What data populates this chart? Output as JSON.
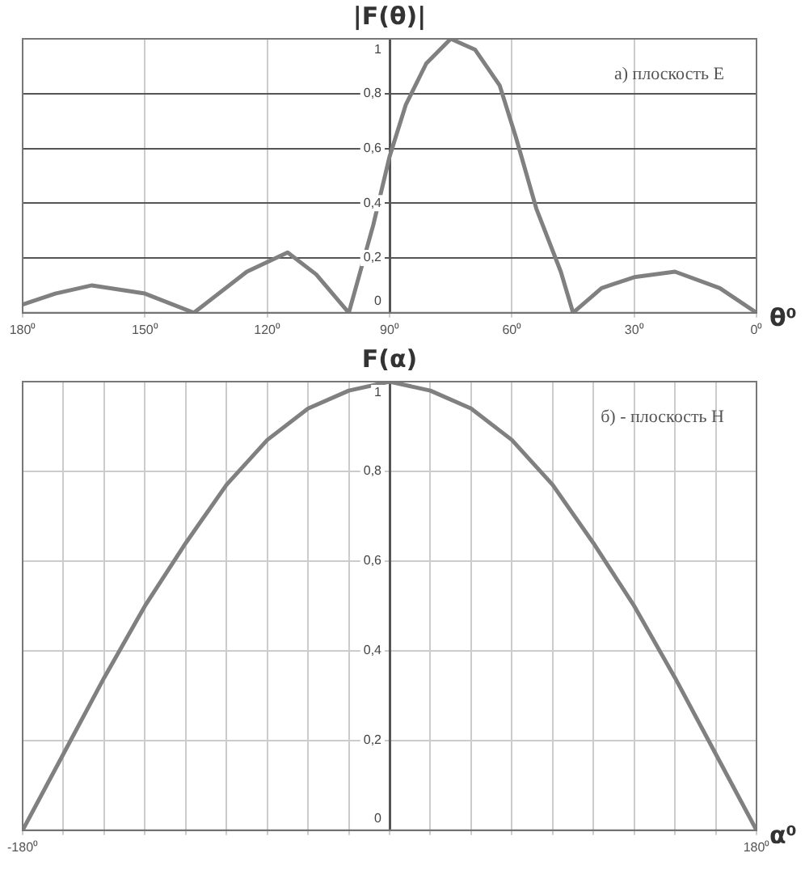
{
  "chart_data": [
    {
      "type": "line",
      "title": "|F(θ)|",
      "xlabel": "θ⁰",
      "annotations": [
        "а) плоскость E"
      ],
      "x": [
        180,
        172,
        163,
        150,
        138,
        125,
        115,
        108,
        100,
        94,
        90,
        86,
        81,
        75,
        69,
        63,
        59,
        54,
        48,
        45,
        38,
        30,
        20,
        9,
        0
      ],
      "values": [
        0.03,
        0.07,
        0.1,
        0.07,
        0,
        0.15,
        0.22,
        0.14,
        0,
        0.32,
        0.57,
        0.76,
        0.91,
        1.0,
        0.96,
        0.83,
        0.64,
        0.38,
        0.15,
        0,
        0.09,
        0.13,
        0.15,
        0.09,
        0
      ],
      "color": "#808080",
      "marker": "none",
      "line_style": "solid",
      "grid": true,
      "xlim": [
        180,
        0
      ],
      "xticks": [
        {
          "value": 180,
          "label": "180⁰"
        },
        {
          "value": 150,
          "label": "150⁰"
        },
        {
          "value": 120,
          "label": "120⁰"
        },
        {
          "value": 90,
          "label": "90⁰"
        },
        {
          "value": 60,
          "label": "60⁰"
        },
        {
          "value": 30,
          "label": "30⁰"
        },
        {
          "value": 0,
          "label": "0⁰"
        }
      ],
      "ylim": [
        0,
        1
      ],
      "yticks": [
        {
          "value": 0,
          "label": "0"
        },
        {
          "value": 0.2,
          "label": "0,2"
        },
        {
          "value": 0.4,
          "label": "0,4"
        },
        {
          "value": 0.6,
          "label": "0,6"
        },
        {
          "value": 0.8,
          "label": "0,8"
        },
        {
          "value": 1,
          "label": "1"
        }
      ]
    },
    {
      "type": "line",
      "title": "F(α)",
      "xlabel": "α⁰",
      "annotations": [
        "б) - плоскость Н"
      ],
      "x": [
        -180,
        -160,
        -140,
        -120,
        -100,
        -80,
        -60,
        -40,
        -20,
        0,
        20,
        40,
        60,
        80,
        100,
        120,
        140,
        160,
        180
      ],
      "values": [
        0,
        0.17,
        0.34,
        0.5,
        0.64,
        0.77,
        0.87,
        0.94,
        0.98,
        1.0,
        0.98,
        0.94,
        0.87,
        0.77,
        0.64,
        0.5,
        0.34,
        0.17,
        0
      ],
      "color": "#808080",
      "marker": "none",
      "line_style": "solid",
      "grid": true,
      "xlim": [
        -180,
        180
      ],
      "xticks": [
        {
          "value": -180,
          "label": "-180⁰"
        },
        {
          "value": -160,
          "label": null
        },
        {
          "value": -140,
          "label": null
        },
        {
          "value": -120,
          "label": null
        },
        {
          "value": -100,
          "label": null
        },
        {
          "value": -80,
          "label": null
        },
        {
          "value": -60,
          "label": null
        },
        {
          "value": -40,
          "label": null
        },
        {
          "value": -20,
          "label": null
        },
        {
          "value": 0,
          "label": null
        },
        {
          "value": 20,
          "label": null
        },
        {
          "value": 40,
          "label": null
        },
        {
          "value": 60,
          "label": null
        },
        {
          "value": 80,
          "label": null
        },
        {
          "value": 100,
          "label": null
        },
        {
          "value": 120,
          "label": null
        },
        {
          "value": 140,
          "label": null
        },
        {
          "value": 160,
          "label": null
        },
        {
          "value": 180,
          "label": "180⁰"
        }
      ],
      "ylim": [
        0,
        1
      ],
      "yticks": [
        {
          "value": 0,
          "label": "0"
        },
        {
          "value": 0.2,
          "label": "0,2"
        },
        {
          "value": 0.4,
          "label": "0,4"
        },
        {
          "value": 0.6,
          "label": "0,6"
        },
        {
          "value": 0.8,
          "label": "0,8"
        },
        {
          "value": 1,
          "label": "1"
        }
      ]
    }
  ]
}
